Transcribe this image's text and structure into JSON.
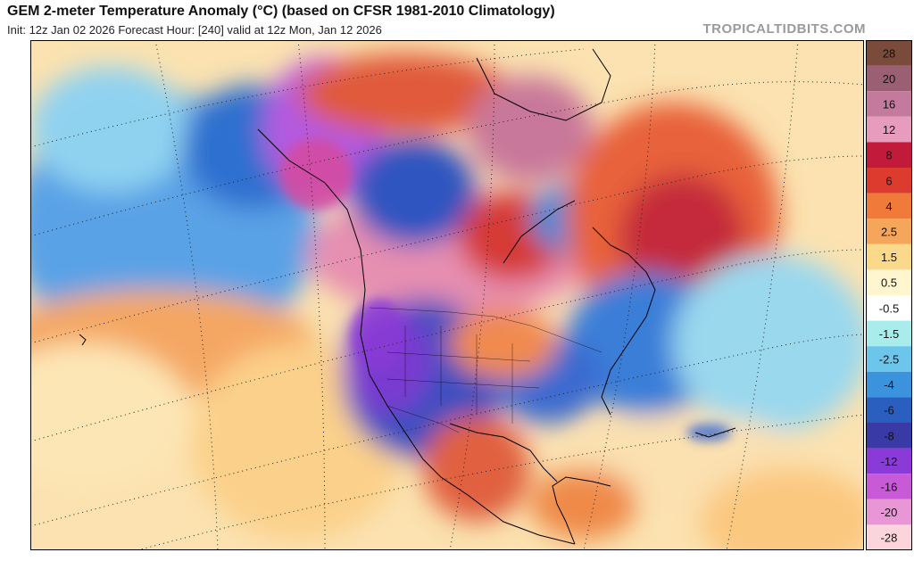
{
  "header": {
    "title": "GEM 2-meter Temperature Anomaly (°C) (based on CFSR 1981-2010 Climatology)",
    "subtitle": "Init: 12z Jan 02 2026   Forecast Hour: [240]   valid at 12z Mon, Jan 12 2026",
    "brand": "TROPICALTIDBITS.COM"
  },
  "legend": {
    "levels": [
      {
        "label": "28",
        "color": "#7a4a3a"
      },
      {
        "label": "20",
        "color": "#9b5f74"
      },
      {
        "label": "16",
        "color": "#c47a9c"
      },
      {
        "label": "12",
        "color": "#e79bbd"
      },
      {
        "label": "8",
        "color": "#c21a3a"
      },
      {
        "label": "6",
        "color": "#dc3b2e"
      },
      {
        "label": "4",
        "color": "#ef7a3a"
      },
      {
        "label": "2.5",
        "color": "#f6a65a"
      },
      {
        "label": "1.5",
        "color": "#fbd98a"
      },
      {
        "label": "0.5",
        "color": "#fff6cf"
      },
      {
        "label": "-0.5",
        "color": "#ffffff"
      },
      {
        "label": "-1.5",
        "color": "#a8ecec"
      },
      {
        "label": "-2.5",
        "color": "#6cc6ec"
      },
      {
        "label": "-4",
        "color": "#3a93dc"
      },
      {
        "label": "-6",
        "color": "#2a5fbf"
      },
      {
        "label": "-8",
        "color": "#3a3aa6"
      },
      {
        "label": "-12",
        "color": "#8a3ad6"
      },
      {
        "label": "-16",
        "color": "#c85ad8"
      },
      {
        "label": "-20",
        "color": "#e896d6"
      },
      {
        "label": "-28",
        "color": "#fbd4dc"
      }
    ]
  }
}
